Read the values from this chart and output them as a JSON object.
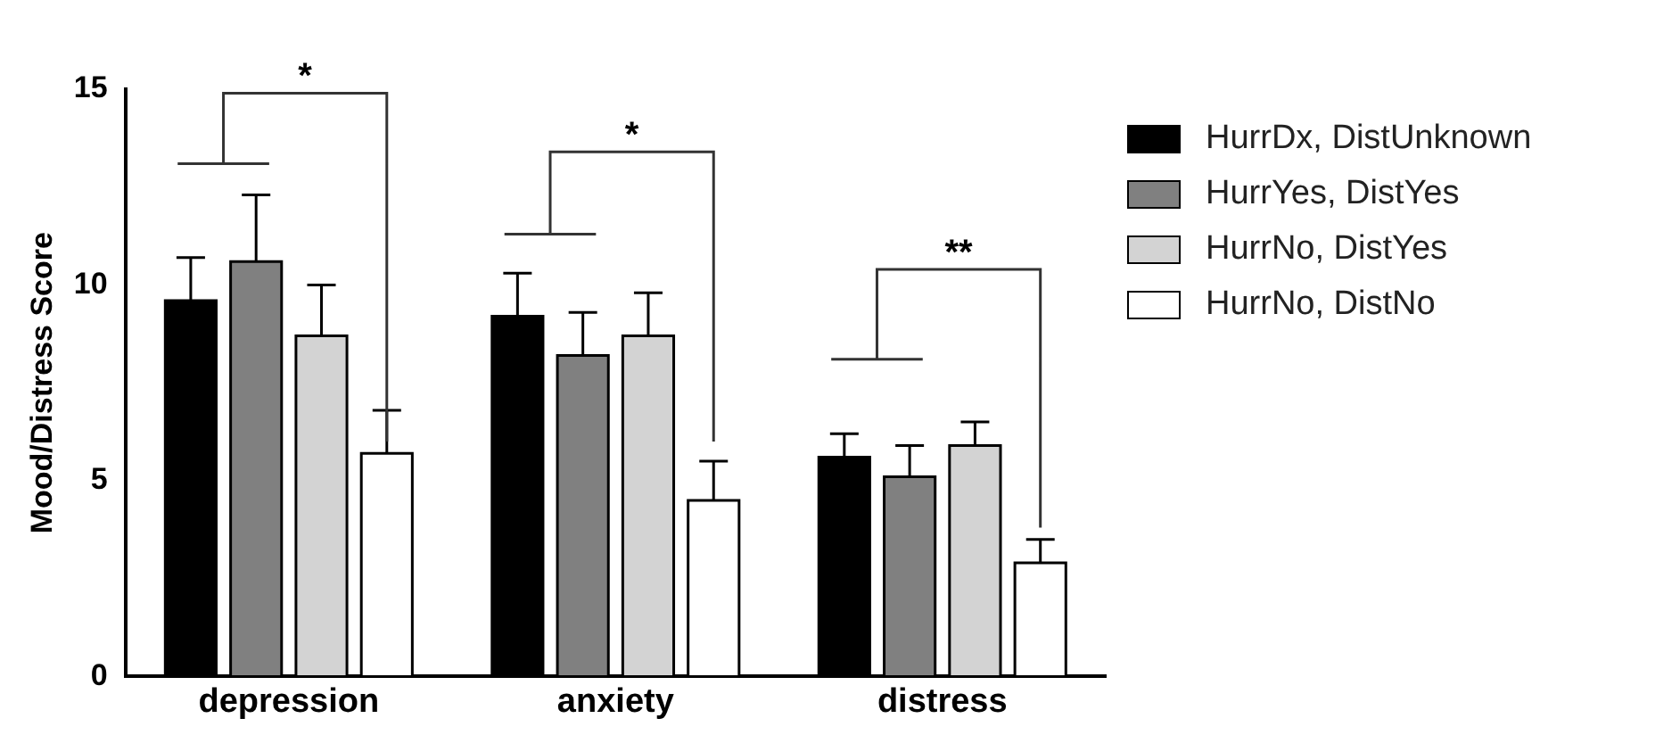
{
  "chart_data": {
    "type": "bar",
    "ylabel": "Mood/Distress Score",
    "categories": [
      "depression",
      "anxiety",
      "distress"
    ],
    "series": [
      {
        "name": "HurrDx, DistUnknown",
        "color": "#000000",
        "values": [
          9.6,
          9.2,
          5.6
        ],
        "errors": [
          1.1,
          1.1,
          0.6
        ]
      },
      {
        "name": "HurrYes, DistYes",
        "color": "#808080",
        "values": [
          10.6,
          8.2,
          5.1
        ],
        "errors": [
          1.7,
          1.1,
          0.8
        ]
      },
      {
        "name": "HurrNo, DistYes",
        "color": "#d3d3d3",
        "values": [
          8.7,
          8.7,
          5.9
        ],
        "errors": [
          1.3,
          1.1,
          0.6
        ]
      },
      {
        "name": "HurrNo, DistNo",
        "color": "#ffffff",
        "values": [
          5.7,
          4.5,
          2.9
        ],
        "errors": [
          1.1,
          1.0,
          0.6
        ]
      }
    ],
    "ylim": [
      0,
      15
    ],
    "yticks": [
      0,
      5,
      10,
      15
    ],
    "grid": false,
    "legend": "right",
    "annotations": [
      "*",
      "*",
      "**"
    ]
  }
}
